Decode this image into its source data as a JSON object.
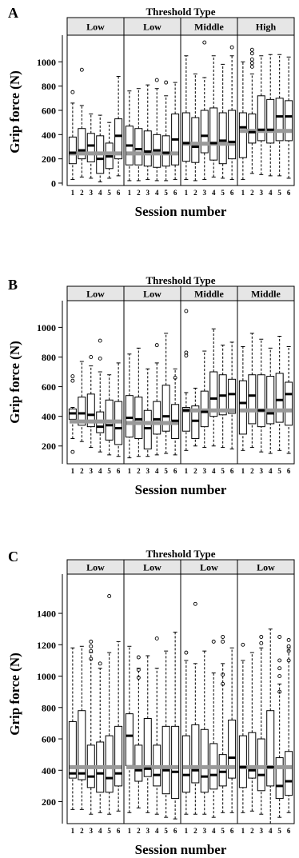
{
  "colors": {
    "median_line": "#999999",
    "strip_fill": "#e6e6e6",
    "box_stroke": "#000000"
  },
  "chart_data": [
    {
      "type": "box",
      "panel_label": "A",
      "title": "Threshold Type",
      "xlabel": "Session number",
      "ylabel": "Grip force (N)",
      "ylim": [
        -20,
        1220
      ],
      "yticks": [
        0,
        200,
        400,
        600,
        800,
        1000
      ],
      "sessions": [
        "1",
        "2",
        "3",
        "4",
        "5",
        "6"
      ],
      "facets": [
        {
          "label": "Low",
          "group_median": 245,
          "boxes": [
            {
              "lo": 30,
              "q1": 160,
              "med": 250,
              "q3": 380,
              "hi": 660,
              "out": [
                750
              ]
            },
            {
              "lo": 50,
              "q1": 200,
              "med": 270,
              "q3": 450,
              "hi": 640,
              "out": [
                935
              ]
            },
            {
              "lo": 40,
              "q1": 175,
              "med": 310,
              "q3": 410,
              "hi": 570,
              "out": []
            },
            {
              "lo": 10,
              "q1": 80,
              "med": 200,
              "q3": 390,
              "hi": 560,
              "out": []
            },
            {
              "lo": 40,
              "q1": 120,
              "med": 220,
              "q3": 330,
              "hi": 500,
              "out": []
            },
            {
              "lo": 60,
              "q1": 200,
              "med": 390,
              "q3": 530,
              "hi": 880,
              "out": []
            }
          ]
        },
        {
          "label": "Low",
          "group_median": 245,
          "boxes": [
            {
              "lo": 20,
              "q1": 150,
              "med": 310,
              "q3": 470,
              "hi": 760,
              "out": []
            },
            {
              "lo": 20,
              "q1": 150,
              "med": 280,
              "q3": 450,
              "hi": 780,
              "out": []
            },
            {
              "lo": 30,
              "q1": 140,
              "med": 260,
              "q3": 430,
              "hi": 810,
              "out": []
            },
            {
              "lo": 20,
              "q1": 130,
              "med": 270,
              "q3": 400,
              "hi": 780,
              "out": [
                850
              ]
            },
            {
              "lo": 20,
              "q1": 140,
              "med": 250,
              "q3": 390,
              "hi": 720,
              "out": [
                830
              ]
            },
            {
              "lo": 30,
              "q1": 150,
              "med": 360,
              "q3": 570,
              "hi": 830,
              "out": []
            }
          ]
        },
        {
          "label": "Middle",
          "group_median": 325,
          "boxes": [
            {
              "lo": 30,
              "q1": 180,
              "med": 330,
              "q3": 580,
              "hi": 1050,
              "out": []
            },
            {
              "lo": 20,
              "q1": 170,
              "med": 300,
              "q3": 540,
              "hi": 900,
              "out": []
            },
            {
              "lo": 30,
              "q1": 250,
              "med": 390,
              "q3": 600,
              "hi": 870,
              "out": [
                1160
              ]
            },
            {
              "lo": 50,
              "q1": 190,
              "med": 330,
              "q3": 620,
              "hi": 1050,
              "out": []
            },
            {
              "lo": 40,
              "q1": 160,
              "med": 350,
              "q3": 580,
              "hi": 980,
              "out": []
            },
            {
              "lo": 30,
              "q1": 200,
              "med": 340,
              "q3": 600,
              "hi": 1050,
              "out": [
                1120
              ]
            }
          ]
        },
        {
          "label": "High",
          "group_median": 430,
          "boxes": [
            {
              "lo": 30,
              "q1": 210,
              "med": 460,
              "q3": 580,
              "hi": 1000,
              "out": []
            },
            {
              "lo": 80,
              "q1": 330,
              "med": 420,
              "q3": 570,
              "hi": 900,
              "out": [
                1100,
                1070,
                1020,
                990,
                960
              ]
            },
            {
              "lo": 70,
              "q1": 350,
              "med": 440,
              "q3": 720,
              "hi": 1050,
              "out": []
            },
            {
              "lo": 60,
              "q1": 330,
              "med": 440,
              "q3": 690,
              "hi": 1060,
              "out": []
            },
            {
              "lo": 60,
              "q1": 350,
              "med": 550,
              "q3": 700,
              "hi": 1060,
              "out": []
            },
            {
              "lo": 40,
              "q1": 350,
              "med": 550,
              "q3": 680,
              "hi": 1040,
              "out": []
            }
          ]
        }
      ]
    },
    {
      "type": "box",
      "panel_label": "B",
      "title": "Threshold Type",
      "xlabel": "Session number",
      "ylabel": "Grip force (N)",
      "ylim": [
        80,
        1180
      ],
      "yticks": [
        200,
        400,
        600,
        800,
        1000
      ],
      "sessions": [
        "1",
        "2",
        "3",
        "4",
        "5",
        "6"
      ],
      "facets": [
        {
          "label": "Low",
          "group_median": 365,
          "boxes": [
            {
              "lo": 250,
              "q1": 380,
              "med": 420,
              "q3": 450,
              "hi": 460,
              "out": [
                670,
                640,
                160
              ]
            },
            {
              "lo": 230,
              "q1": 340,
              "med": 420,
              "q3": 530,
              "hi": 770,
              "out": []
            },
            {
              "lo": 190,
              "q1": 330,
              "med": 410,
              "q3": 550,
              "hi": 740,
              "out": [
                800
              ]
            },
            {
              "lo": 160,
              "q1": 290,
              "med": 330,
              "q3": 430,
              "hi": 700,
              "out": [
                910,
                790
              ]
            },
            {
              "lo": 140,
              "q1": 240,
              "med": 340,
              "q3": 510,
              "hi": 680,
              "out": []
            },
            {
              "lo": 130,
              "q1": 210,
              "med": 320,
              "q3": 500,
              "hi": 760,
              "out": []
            }
          ]
        },
        {
          "label": "Low",
          "group_median": 355,
          "boxes": [
            {
              "lo": 120,
              "q1": 260,
              "med": 390,
              "q3": 540,
              "hi": 820,
              "out": []
            },
            {
              "lo": 130,
              "q1": 250,
              "med": 380,
              "q3": 530,
              "hi": 860,
              "out": []
            },
            {
              "lo": 130,
              "q1": 180,
              "med": 320,
              "q3": 440,
              "hi": 720,
              "out": []
            },
            {
              "lo": 140,
              "q1": 280,
              "med": 380,
              "q3": 500,
              "hi": 760,
              "out": [
                880
              ]
            },
            {
              "lo": 150,
              "q1": 300,
              "med": 400,
              "q3": 610,
              "hi": 960,
              "out": []
            },
            {
              "lo": 140,
              "q1": 250,
              "med": 370,
              "q3": 480,
              "hi": 720,
              "out": [
                660
              ]
            }
          ]
        },
        {
          "label": "Middle",
          "group_median": 440,
          "boxes": [
            {
              "lo": 170,
              "q1": 300,
              "med": 440,
              "q3": 460,
              "hi": 560,
              "out": [
                1110,
                830,
                810
              ]
            },
            {
              "lo": 200,
              "q1": 250,
              "med": 370,
              "q3": 470,
              "hi": 590,
              "out": []
            },
            {
              "lo": 190,
              "q1": 330,
              "med": 430,
              "q3": 570,
              "hi": 840,
              "out": []
            },
            {
              "lo": 200,
              "q1": 400,
              "med": 520,
              "q3": 700,
              "hi": 990,
              "out": []
            },
            {
              "lo": 190,
              "q1": 410,
              "med": 540,
              "q3": 680,
              "hi": 880,
              "out": []
            },
            {
              "lo": 180,
              "q1": 420,
              "med": 550,
              "q3": 650,
              "hi": 900,
              "out": []
            }
          ]
        },
        {
          "label": "Middle",
          "group_median": 440,
          "boxes": [
            {
              "lo": 170,
              "q1": 280,
              "med": 490,
              "q3": 640,
              "hi": 870,
              "out": []
            },
            {
              "lo": 190,
              "q1": 350,
              "med": 540,
              "q3": 680,
              "hi": 960,
              "out": []
            },
            {
              "lo": 160,
              "q1": 330,
              "med": 440,
              "q3": 680,
              "hi": 920,
              "out": []
            },
            {
              "lo": 150,
              "q1": 350,
              "med": 420,
              "q3": 670,
              "hi": 860,
              "out": []
            },
            {
              "lo": 170,
              "q1": 360,
              "med": 510,
              "q3": 690,
              "hi": 940,
              "out": []
            },
            {
              "lo": 150,
              "q1": 340,
              "med": 550,
              "q3": 630,
              "hi": 870,
              "out": []
            }
          ]
        }
      ]
    },
    {
      "type": "box",
      "panel_label": "C",
      "title": "Threshold Type",
      "xlabel": "Session number",
      "ylabel": "Grip force (N)",
      "ylim": [
        60,
        1650
      ],
      "yticks": [
        200,
        400,
        600,
        800,
        1000,
        1200,
        1400
      ],
      "sessions": [
        "1",
        "2",
        "3",
        "4",
        "5",
        "6"
      ],
      "facets": [
        {
          "label": "Low",
          "group_median": 420,
          "boxes": [
            {
              "lo": 150,
              "q1": 350,
              "med": 380,
              "q3": 710,
              "hi": 1180,
              "out": []
            },
            {
              "lo": 150,
              "q1": 340,
              "med": 380,
              "q3": 780,
              "hi": 1190,
              "out": []
            },
            {
              "lo": 120,
              "q1": 290,
              "med": 360,
              "q3": 560,
              "hi": 1150,
              "out": [
                1220,
                1190,
                1160,
                1110
              ]
            },
            {
              "lo": 130,
              "q1": 260,
              "med": 380,
              "q3": 580,
              "hi": 1050,
              "out": [
                1080
              ]
            },
            {
              "lo": 120,
              "q1": 260,
              "med": 350,
              "q3": 620,
              "hi": 1150,
              "out": [
                1510
              ]
            },
            {
              "lo": 140,
              "q1": 300,
              "med": 380,
              "q3": 680,
              "hi": 1220,
              "out": []
            }
          ]
        },
        {
          "label": "Low",
          "group_median": 420,
          "boxes": [
            {
              "lo": 130,
              "q1": 430,
              "med": 620,
              "q3": 760,
              "hi": 1190,
              "out": []
            },
            {
              "lo": 160,
              "q1": 330,
              "med": 400,
              "q3": 560,
              "hi": 1050,
              "out": [
                1120,
                1040,
                990
              ]
            },
            {
              "lo": 130,
              "q1": 360,
              "med": 410,
              "q3": 730,
              "hi": 1130,
              "out": []
            },
            {
              "lo": 120,
              "q1": 300,
              "med": 370,
              "q3": 560,
              "hi": 1050,
              "out": [
                1240
              ]
            },
            {
              "lo": 100,
              "q1": 250,
              "med": 400,
              "q3": 680,
              "hi": 1160,
              "out": []
            },
            {
              "lo": 90,
              "q1": 220,
              "med": 390,
              "q3": 680,
              "hi": 1280,
              "out": []
            }
          ]
        },
        {
          "label": "Low",
          "group_median": 420,
          "boxes": [
            {
              "lo": 120,
              "q1": 260,
              "med": 370,
              "q3": 620,
              "hi": 1100,
              "out": [
                1150
              ]
            },
            {
              "lo": 120,
              "q1": 320,
              "med": 400,
              "q3": 690,
              "hi": 1080,
              "out": [
                1460
              ]
            },
            {
              "lo": 120,
              "q1": 260,
              "med": 360,
              "q3": 660,
              "hi": 1160,
              "out": []
            },
            {
              "lo": 100,
              "q1": 280,
              "med": 370,
              "q3": 570,
              "hi": 1020,
              "out": [
                1220
              ]
            },
            {
              "lo": 130,
              "q1": 300,
              "med": 390,
              "q3": 500,
              "hi": 1080,
              "out": [
                1250,
                1220,
                1010,
                950
              ]
            },
            {
              "lo": 130,
              "q1": 350,
              "med": 480,
              "q3": 720,
              "hi": 1180,
              "out": []
            }
          ]
        },
        {
          "label": "Low",
          "group_median": 420,
          "boxes": [
            {
              "lo": 130,
              "q1": 290,
              "med": 420,
              "q3": 620,
              "hi": 1100,
              "out": [
                1200
              ]
            },
            {
              "lo": 140,
              "q1": 350,
              "med": 400,
              "q3": 640,
              "hi": 1150,
              "out": []
            },
            {
              "lo": 120,
              "q1": 270,
              "med": 370,
              "q3": 600,
              "hi": 1180,
              "out": [
                1250,
                1210
              ]
            },
            {
              "lo": 60,
              "q1": 300,
              "med": 420,
              "q3": 780,
              "hi": 1300,
              "out": []
            },
            {
              "lo": 100,
              "q1": 220,
              "med": 300,
              "q3": 480,
              "hi": 950,
              "out": [
                1250,
                1100,
                1050,
                1000,
                900
              ]
            },
            {
              "lo": 130,
              "q1": 240,
              "med": 330,
              "q3": 520,
              "hi": 1180,
              "out": [
                1230,
                1190,
                1160,
                1100
              ]
            }
          ]
        }
      ]
    }
  ]
}
